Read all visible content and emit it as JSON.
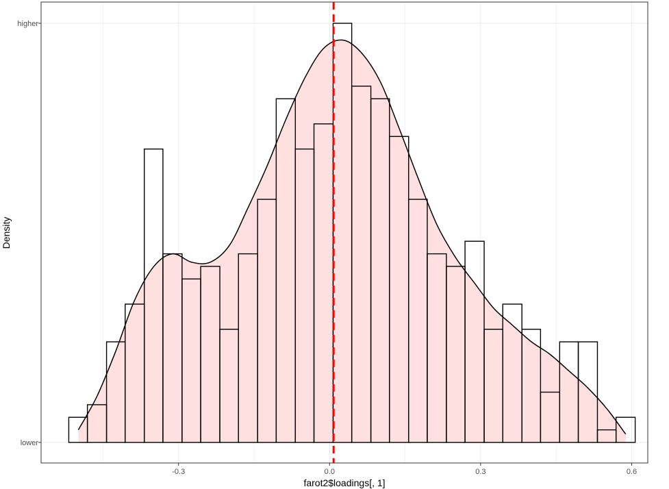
{
  "chart_data": {
    "type": "histogram",
    "xlabel": "farot2$loadings[, 1]",
    "ylabel": "Density",
    "x_ticks": [
      -0.3,
      0.0,
      0.3,
      0.6
    ],
    "x_tick_labels": [
      "-0.3",
      "0.0",
      "0.3",
      "0.6"
    ],
    "y_tick_labels": [
      "higher",
      "lower"
    ],
    "xlim": [
      -0.573,
      0.632
    ],
    "ylim": [
      0,
      1
    ],
    "binwidth": 0.0375,
    "bins": [
      {
        "x0": -0.518,
        "x1": -0.481,
        "value": 0.06
      },
      {
        "x0": -0.481,
        "x1": -0.443,
        "value": 0.09
      },
      {
        "x0": -0.443,
        "x1": -0.406,
        "value": 0.24
      },
      {
        "x0": -0.406,
        "x1": -0.368,
        "value": 0.33
      },
      {
        "x0": -0.368,
        "x1": -0.331,
        "value": 0.7
      },
      {
        "x0": -0.331,
        "x1": -0.293,
        "value": 0.45
      },
      {
        "x0": -0.293,
        "x1": -0.256,
        "value": 0.39
      },
      {
        "x0": -0.256,
        "x1": -0.218,
        "value": 0.42
      },
      {
        "x0": -0.218,
        "x1": -0.181,
        "value": 0.27
      },
      {
        "x0": -0.181,
        "x1": -0.143,
        "value": 0.45
      },
      {
        "x0": -0.143,
        "x1": -0.106,
        "value": 0.58
      },
      {
        "x0": -0.106,
        "x1": -0.068,
        "value": 0.82
      },
      {
        "x0": -0.068,
        "x1": -0.031,
        "value": 0.7
      },
      {
        "x0": -0.031,
        "x1": 0.007,
        "value": 0.76
      },
      {
        "x0": 0.007,
        "x1": 0.044,
        "value": 1.0
      },
      {
        "x0": 0.044,
        "x1": 0.082,
        "value": 0.85
      },
      {
        "x0": 0.082,
        "x1": 0.119,
        "value": 0.82
      },
      {
        "x0": 0.119,
        "x1": 0.157,
        "value": 0.73
      },
      {
        "x0": 0.157,
        "x1": 0.194,
        "value": 0.58
      },
      {
        "x0": 0.194,
        "x1": 0.232,
        "value": 0.45
      },
      {
        "x0": 0.232,
        "x1": 0.269,
        "value": 0.42
      },
      {
        "x0": 0.269,
        "x1": 0.307,
        "value": 0.48
      },
      {
        "x0": 0.307,
        "x1": 0.344,
        "value": 0.27
      },
      {
        "x0": 0.344,
        "x1": 0.382,
        "value": 0.33
      },
      {
        "x0": 0.382,
        "x1": 0.419,
        "value": 0.27
      },
      {
        "x0": 0.419,
        "x1": 0.457,
        "value": 0.12
      },
      {
        "x0": 0.457,
        "x1": 0.494,
        "value": 0.24
      },
      {
        "x0": 0.494,
        "x1": 0.532,
        "value": 0.24
      },
      {
        "x0": 0.532,
        "x1": 0.569,
        "value": 0.03
      },
      {
        "x0": 0.569,
        "x1": 0.607,
        "value": 0.06
      }
    ],
    "density_curve": [
      {
        "x": -0.499,
        "y": 0.03
      },
      {
        "x": -0.462,
        "y": 0.11
      },
      {
        "x": -0.424,
        "y": 0.22
      },
      {
        "x": -0.387,
        "y": 0.34
      },
      {
        "x": -0.349,
        "y": 0.42
      },
      {
        "x": -0.312,
        "y": 0.45
      },
      {
        "x": -0.274,
        "y": 0.43
      },
      {
        "x": -0.237,
        "y": 0.43
      },
      {
        "x": -0.199,
        "y": 0.47
      },
      {
        "x": -0.162,
        "y": 0.56
      },
      {
        "x": -0.124,
        "y": 0.66
      },
      {
        "x": -0.087,
        "y": 0.77
      },
      {
        "x": -0.049,
        "y": 0.87
      },
      {
        "x": -0.012,
        "y": 0.94
      },
      {
        "x": 0.026,
        "y": 0.96
      },
      {
        "x": 0.063,
        "y": 0.93
      },
      {
        "x": 0.101,
        "y": 0.86
      },
      {
        "x": 0.138,
        "y": 0.75
      },
      {
        "x": 0.176,
        "y": 0.63
      },
      {
        "x": 0.213,
        "y": 0.52
      },
      {
        "x": 0.251,
        "y": 0.44
      },
      {
        "x": 0.288,
        "y": 0.38
      },
      {
        "x": 0.326,
        "y": 0.32
      },
      {
        "x": 0.363,
        "y": 0.28
      },
      {
        "x": 0.401,
        "y": 0.24
      },
      {
        "x": 0.438,
        "y": 0.21
      },
      {
        "x": 0.476,
        "y": 0.17
      },
      {
        "x": 0.513,
        "y": 0.13
      },
      {
        "x": 0.551,
        "y": 0.08
      },
      {
        "x": 0.588,
        "y": 0.02
      }
    ],
    "vline": {
      "x": 0.008,
      "color": "#ff0000",
      "style": "dashed"
    },
    "colors": {
      "density_fill": "#ffe0e1",
      "bar_outline": "#000000",
      "density_line": "#000000"
    },
    "grid": true
  }
}
